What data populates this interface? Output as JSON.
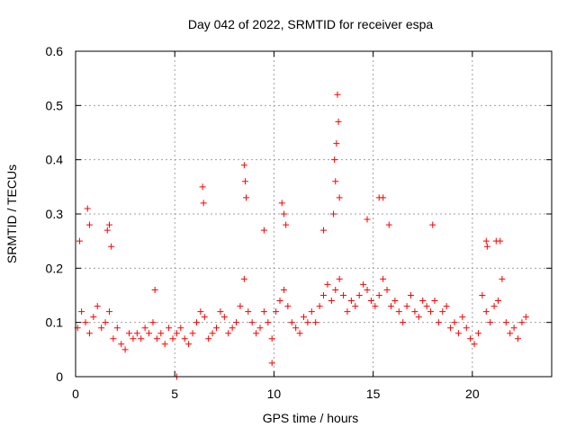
{
  "chart_data": {
    "type": "scatter",
    "title": "Day 042 of 2022, SRMTID for receiver espa",
    "xlabel": "GPS time / hours",
    "ylabel": "SRMTID / TECUs",
    "xlim": [
      0,
      24
    ],
    "ylim": [
      0,
      0.6
    ],
    "xticks": [
      0,
      5,
      10,
      15,
      20
    ],
    "xtick_labels": [
      "0",
      "5",
      "10",
      "15",
      "20"
    ],
    "yticks": [
      0,
      0.1,
      0.2,
      0.3,
      0.4,
      0.5,
      0.6
    ],
    "ytick_labels": [
      "0",
      "0.1",
      "0.2",
      "0.3",
      "0.4",
      "0.5",
      "0.6"
    ],
    "grid": true,
    "marker": "+",
    "color": "#ff0000",
    "series": [
      {
        "name": "SRMTID",
        "x": [
          0.1,
          0.3,
          0.5,
          0.7,
          0.9,
          1.1,
          1.3,
          1.5,
          1.7,
          1.9,
          2.1,
          2.3,
          2.5,
          2.7,
          2.9,
          3.1,
          3.3,
          3.5,
          3.7,
          3.9,
          4.1,
          4.3,
          4.5,
          4.7,
          4.9,
          5.1,
          5.3,
          5.5,
          5.7,
          5.9,
          6.1,
          6.3,
          6.5,
          6.7,
          6.9,
          7.1,
          7.3,
          7.5,
          7.7,
          7.9,
          8.1,
          8.3,
          8.5,
          8.7,
          8.9,
          9.1,
          9.3,
          9.5,
          9.7,
          9.9,
          10.1,
          10.3,
          10.5,
          10.7,
          10.9,
          11.1,
          11.3,
          11.5,
          11.7,
          11.9,
          12.1,
          12.3,
          12.5,
          12.7,
          12.9,
          13.1,
          13.3,
          13.5,
          13.7,
          13.9,
          14.1,
          14.3,
          14.5,
          14.7,
          14.9,
          15.1,
          15.3,
          15.5,
          15.7,
          15.9,
          16.1,
          16.3,
          16.5,
          16.7,
          16.9,
          17.1,
          17.3,
          17.5,
          17.7,
          17.9,
          18.1,
          18.3,
          18.5,
          18.7,
          18.9,
          19.1,
          19.3,
          19.5,
          19.7,
          19.9,
          20.1,
          20.3,
          20.5,
          20.7,
          20.9,
          21.1,
          21.3,
          21.5,
          21.7,
          21.9,
          22.1,
          22.3,
          22.5,
          22.7,
          0.2,
          0.6,
          0.7,
          1.6,
          1.7,
          1.8,
          4.0,
          5.1,
          6.4,
          6.45,
          8.5,
          8.55,
          8.6,
          9.5,
          10.4,
          10.5,
          10.6,
          12.5,
          13.0,
          13.1,
          13.15,
          13.2,
          13.25,
          13.3,
          14.7,
          15.3,
          15.5,
          15.8,
          18.0,
          20.7,
          20.75,
          21.2,
          21.4,
          9.9,
          13.05
        ],
        "y": [
          0.09,
          0.12,
          0.1,
          0.08,
          0.11,
          0.13,
          0.09,
          0.1,
          0.12,
          0.07,
          0.09,
          0.06,
          0.05,
          0.08,
          0.07,
          0.08,
          0.07,
          0.09,
          0.08,
          0.1,
          0.07,
          0.08,
          0.06,
          0.09,
          0.07,
          0.08,
          0.09,
          0.07,
          0.06,
          0.08,
          0.1,
          0.12,
          0.11,
          0.07,
          0.08,
          0.09,
          0.12,
          0.11,
          0.08,
          0.09,
          0.1,
          0.13,
          0.18,
          0.12,
          0.1,
          0.08,
          0.09,
          0.12,
          0.1,
          0.07,
          0.12,
          0.14,
          0.16,
          0.13,
          0.1,
          0.09,
          0.08,
          0.11,
          0.1,
          0.12,
          0.1,
          0.13,
          0.15,
          0.17,
          0.14,
          0.16,
          0.18,
          0.15,
          0.12,
          0.14,
          0.13,
          0.15,
          0.17,
          0.16,
          0.14,
          0.13,
          0.15,
          0.18,
          0.16,
          0.13,
          0.14,
          0.12,
          0.1,
          0.13,
          0.15,
          0.12,
          0.11,
          0.14,
          0.13,
          0.12,
          0.14,
          0.1,
          0.12,
          0.13,
          0.09,
          0.1,
          0.08,
          0.11,
          0.09,
          0.07,
          0.06,
          0.08,
          0.15,
          0.12,
          0.1,
          0.13,
          0.14,
          0.18,
          0.1,
          0.08,
          0.09,
          0.07,
          0.1,
          0.11,
          0.25,
          0.31,
          0.28,
          0.27,
          0.28,
          0.24,
          0.16,
          0.0,
          0.35,
          0.32,
          0.39,
          0.36,
          0.33,
          0.27,
          0.32,
          0.3,
          0.28,
          0.27,
          0.3,
          0.36,
          0.43,
          0.52,
          0.47,
          0.33,
          0.29,
          0.33,
          0.33,
          0.28,
          0.28,
          0.25,
          0.24,
          0.25,
          0.25,
          0.025,
          0.4
        ]
      }
    ]
  }
}
